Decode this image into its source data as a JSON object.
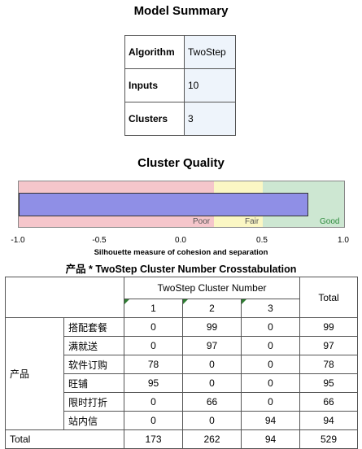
{
  "model_summary": {
    "title": "Model Summary",
    "rows": [
      {
        "key": "Algorithm",
        "value": "TwoStep"
      },
      {
        "key": "Inputs",
        "value": "10"
      },
      {
        "key": "Clusters",
        "value": "3"
      }
    ]
  },
  "cluster_quality": {
    "title": "Cluster Quality",
    "zones": [
      "Poor",
      "Fair",
      "Good"
    ],
    "zone_colors": {
      "poor": "#f5c6cb",
      "fair": "#fbf7c4",
      "good": "#cde7d2"
    },
    "bar_color": "#8f8fe6",
    "silhouette_value": 0.78,
    "ticks": [
      "-1.0",
      "-0.5",
      "0.0",
      "0.5",
      "1.0"
    ],
    "axis_label": "Silhouette measure of cohesion and separation"
  },
  "crosstab": {
    "title": "产品 * TwoStep Cluster Number Crosstabulation",
    "group_header": "TwoStep Cluster Number",
    "total_header": "Total",
    "col_labels": [
      "1",
      "2",
      "3"
    ],
    "row_group_label": "产品",
    "rows": [
      {
        "label": "搭配套餐",
        "values": [
          "0",
          "99",
          "0",
          "99"
        ]
      },
      {
        "label": "满就送",
        "values": [
          "0",
          "97",
          "0",
          "97"
        ]
      },
      {
        "label": "软件订购",
        "values": [
          "78",
          "0",
          "0",
          "78"
        ]
      },
      {
        "label": "旺铺",
        "values": [
          "95",
          "0",
          "0",
          "95"
        ]
      },
      {
        "label": "限时打折",
        "values": [
          "0",
          "66",
          "0",
          "66"
        ]
      },
      {
        "label": "站内信",
        "values": [
          "0",
          "0",
          "94",
          "94"
        ]
      }
    ],
    "total_row": {
      "label": "Total",
      "values": [
        "173",
        "262",
        "94",
        "529"
      ]
    }
  }
}
